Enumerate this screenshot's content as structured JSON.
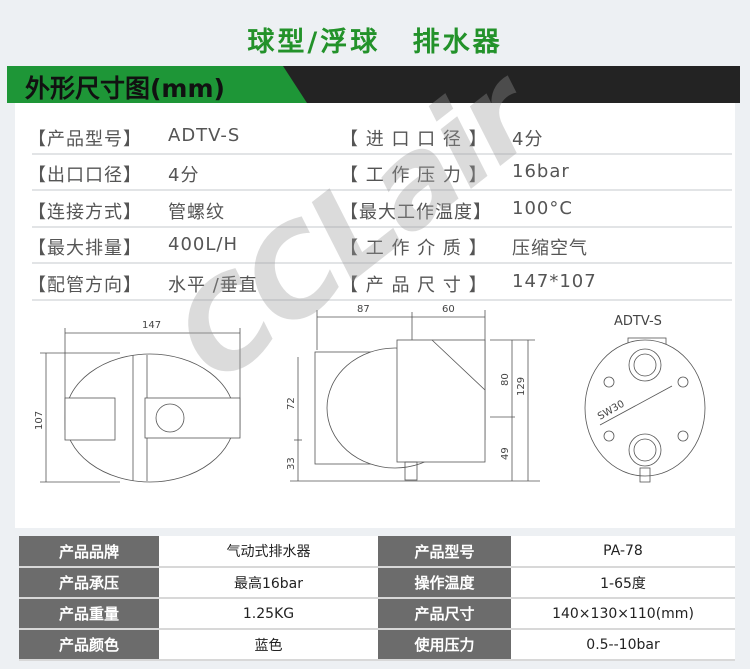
{
  "header": {
    "title": "球型/浮球 排水器"
  },
  "banner": {
    "title": "外形尺寸图(mm)"
  },
  "specs": [
    {
      "label": "【产品型号】",
      "value": "ADTV-S",
      "label2": "【 进 口 口 径 】",
      "value2": "4分"
    },
    {
      "label": "【出口口径】",
      "value": "4分",
      "label2": "【 工 作 压 力 】",
      "value2": "16bar"
    },
    {
      "label": "【连接方式】",
      "value": "管螺纹",
      "label2": "【最大工作温度】",
      "value2": "100°C"
    },
    {
      "label": "【最大排量】",
      "value": "400L/H",
      "label2": "【 工 作 介 质 】",
      "value2": "压缩空气"
    },
    {
      "label": "【配管方向】",
      "value": "水平 /垂直",
      "label2": "【 产 品 尺 寸 】",
      "value2": "147*107"
    }
  ],
  "drawing": {
    "front": {
      "width": "147",
      "height": "107"
    },
    "side": {
      "depth_a": "87",
      "depth_b": "60",
      "h_upper": "72",
      "h_lower": "33",
      "h_80": "80",
      "h_49": "49",
      "h_total": "129"
    },
    "bottom": {
      "model": "ADTV-S",
      "wrench": "SW30"
    }
  },
  "watermark": "CCLair",
  "table": [
    [
      "产品品牌",
      "气动式排水器",
      "产品型号",
      "PA-78"
    ],
    [
      "产品承压",
      "最高16bar",
      "操作温度",
      "1-65度"
    ],
    [
      "产品重量",
      "1.25KG",
      "产品尺寸",
      "140×130×110(mm)"
    ],
    [
      "产品颜色",
      "蓝色",
      "使用压力",
      "0.5--10bar"
    ]
  ],
  "colors": {
    "green": "#23922a",
    "banner_dark": "#232323",
    "table_label": "#6c6c6c"
  }
}
